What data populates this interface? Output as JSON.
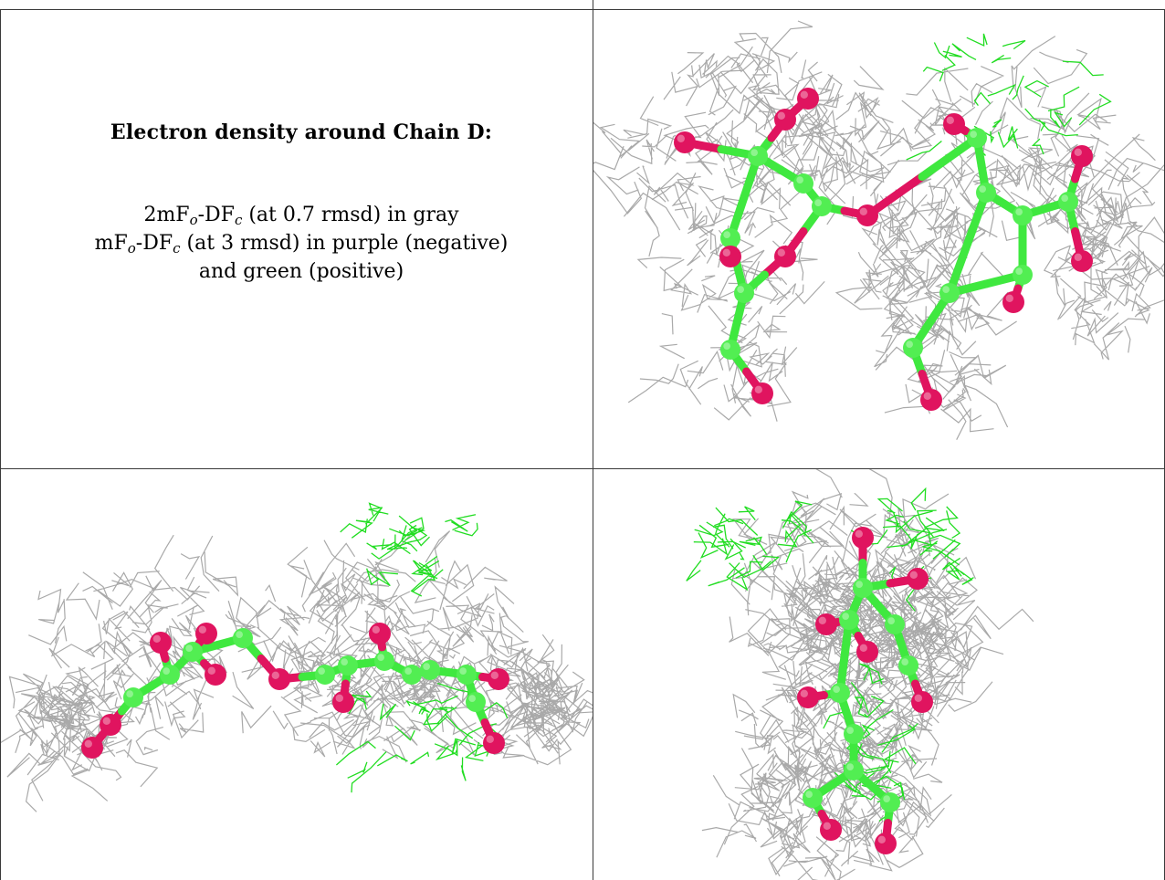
{
  "caption": {
    "title": "Electron density around Chain D:",
    "line1_prefix": "2mF",
    "line1_sub1": "o",
    "line1_mid": "-DF",
    "line1_sub2": "c",
    "line1_suffix": " (at 0.7 rmsd) in gray",
    "line2_prefix": "mF",
    "line2_sub1": "o",
    "line2_mid": "-DF",
    "line2_sub2": "c",
    "line2_suffix": " (at 3 rmsd) in purple (negative)",
    "line3": "and green (positive)"
  },
  "colors": {
    "mesh_gray": "#8c8c8c",
    "bond_green": "#3fe83f",
    "atom_green": "#52ee52",
    "oxygen_red": "#e0145f",
    "positive_green": "#22dd22",
    "grid_lines": "#3a3a3a"
  },
  "views": [
    {
      "name": "top-view",
      "description_visible": false
    },
    {
      "name": "side-view",
      "description_visible": false
    },
    {
      "name": "end-view",
      "description_visible": false
    }
  ]
}
